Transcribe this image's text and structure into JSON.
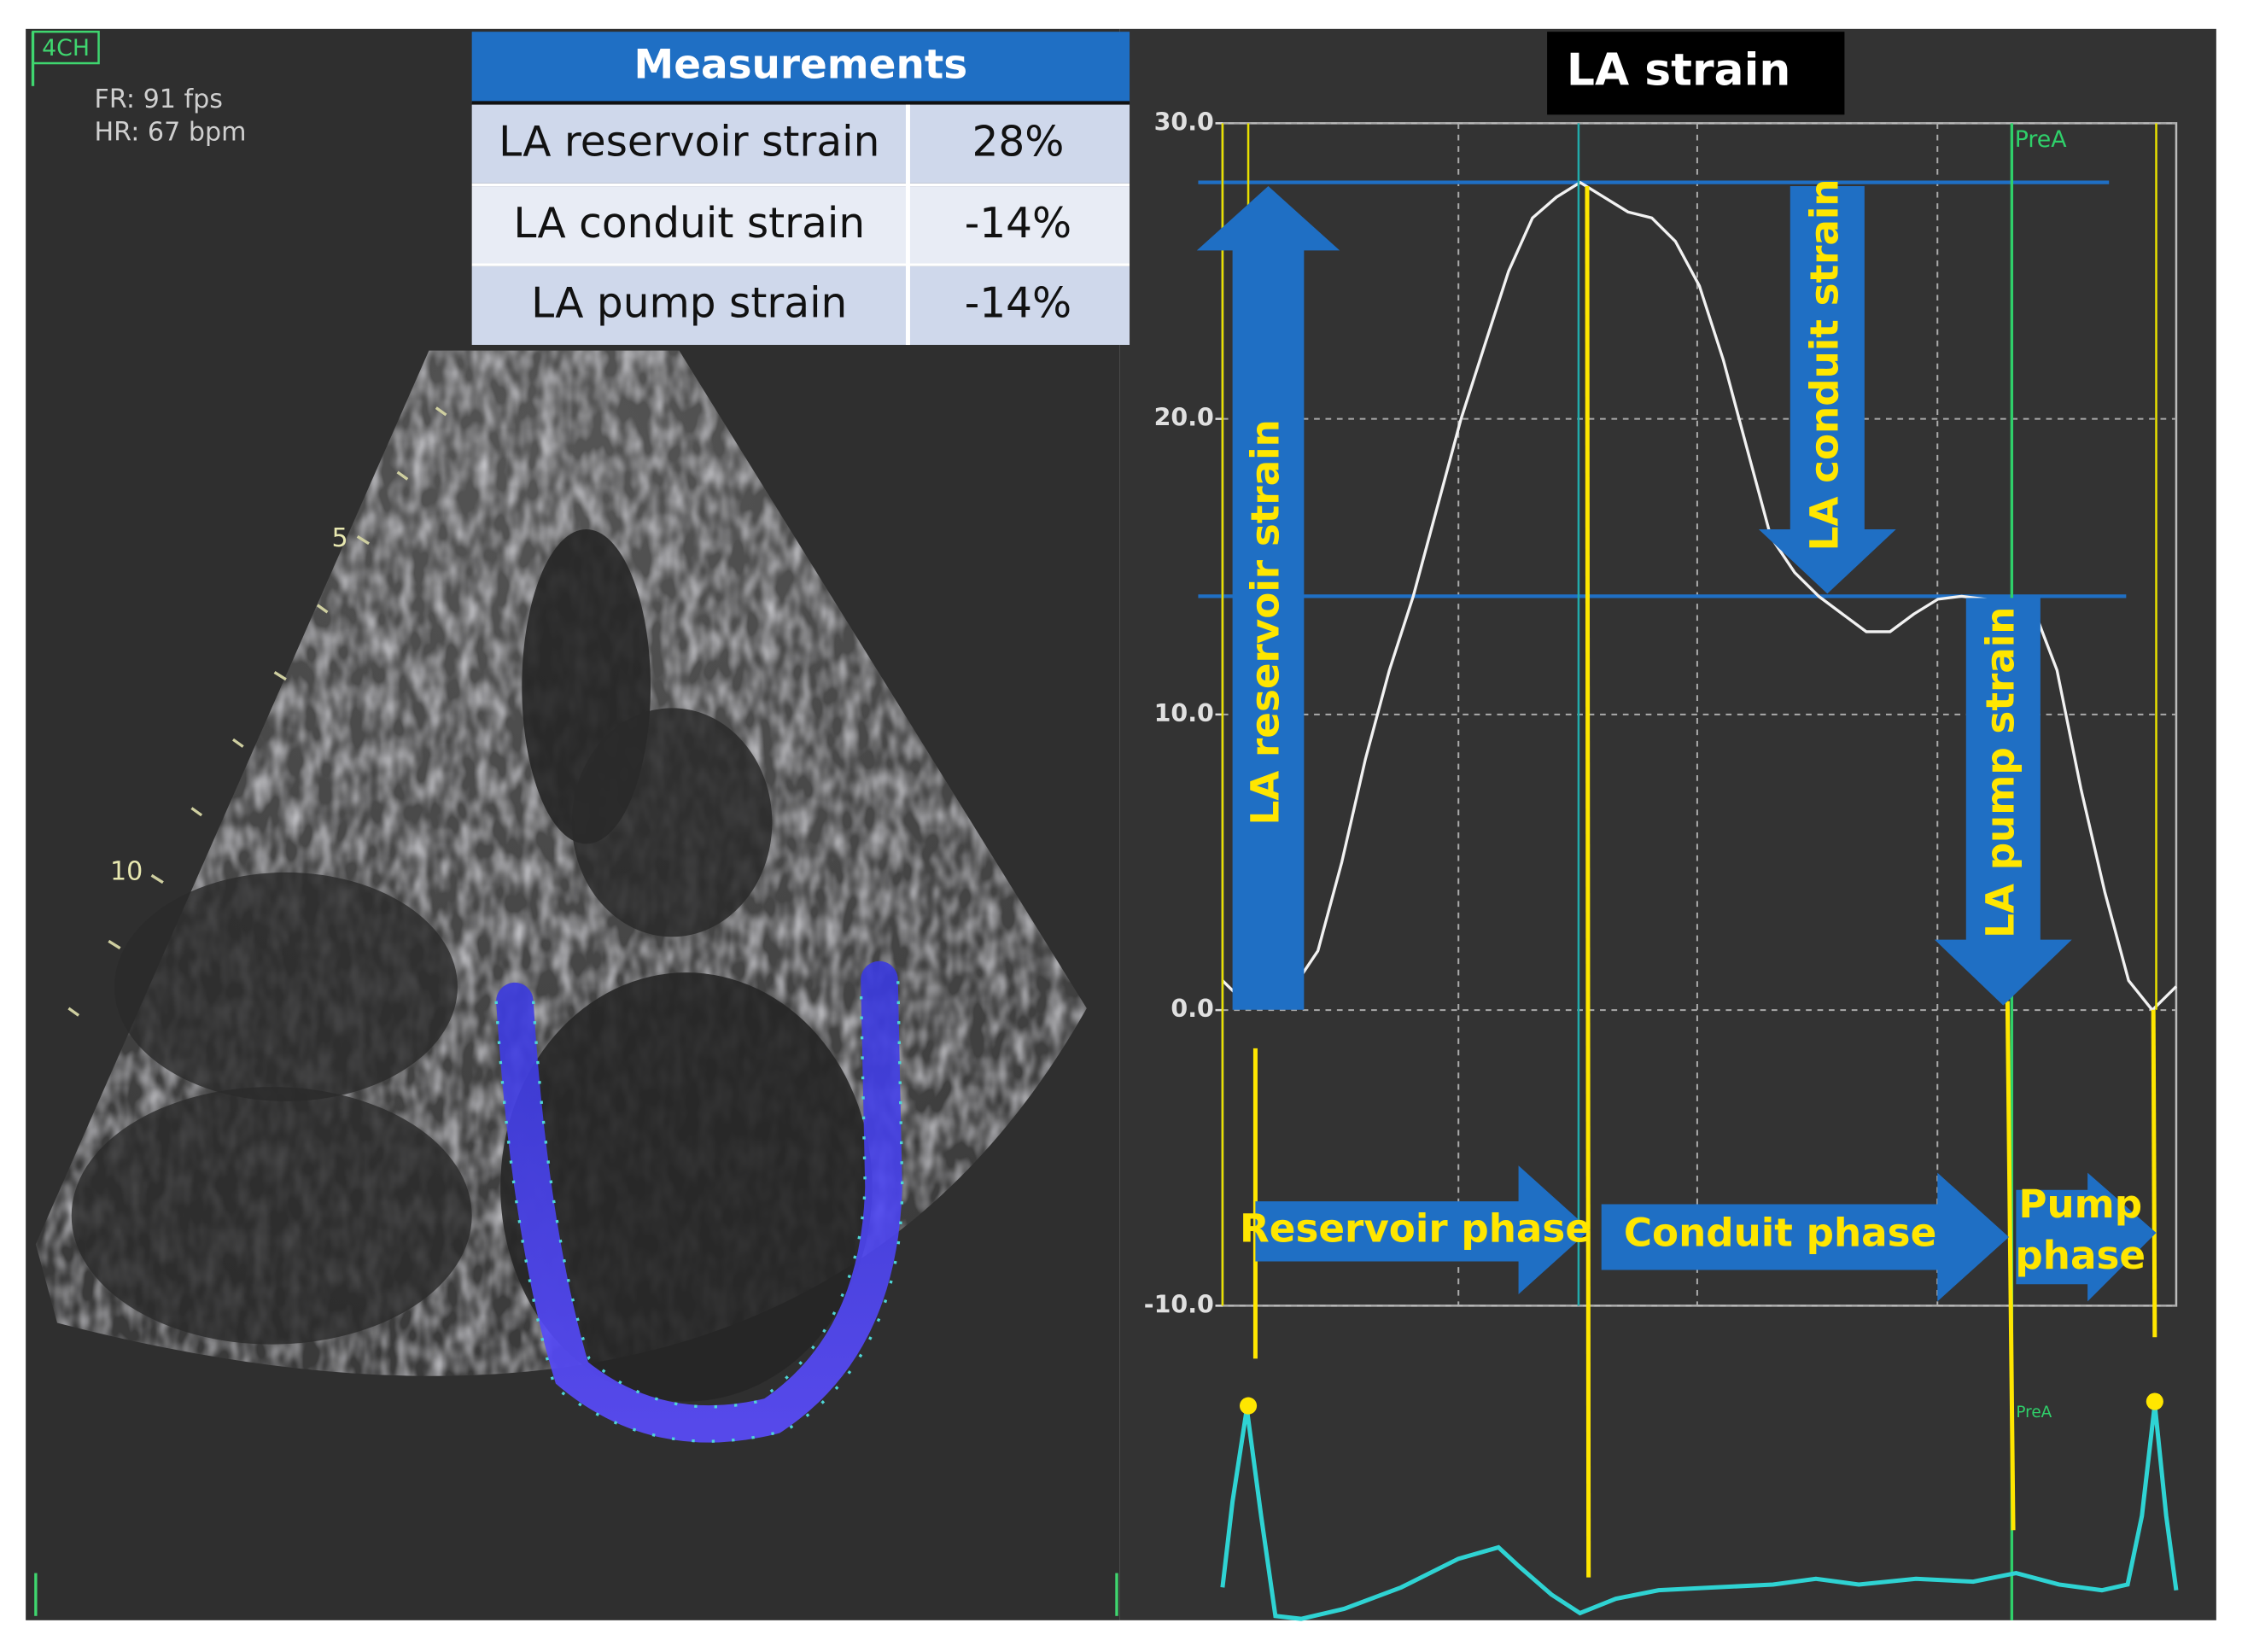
{
  "chart_data": {
    "type": "line",
    "title": "LA strain",
    "values": [
      1.0,
      0.2,
      0.3,
      0.8,
      2,
      5,
      8.5,
      11.5,
      14,
      17,
      20,
      22.5,
      25,
      26.8,
      27.5,
      28,
      27.5,
      27,
      26.8,
      26,
      24.5,
      22,
      19,
      16,
      14.8,
      14,
      13.4,
      12.8,
      12.8,
      13.4,
      13.9,
      14,
      13.9,
      13.8,
      13.6,
      11.5,
      7.5,
      4,
      1,
      0,
      0.8
    ],
    "color": "#f2f2f2",
    "ylim": [
      -10,
      30
    ],
    "yticks": [
      {
        "value": -10,
        "label": "-10.0"
      },
      {
        "value": 0,
        "label": "0.0"
      },
      {
        "value": 10,
        "label": "10.0"
      },
      {
        "value": 20,
        "label": "20.0"
      },
      {
        "value": 30,
        "label": "30.0"
      }
    ],
    "grid": true,
    "reference_lines": [
      28,
      14
    ],
    "reference_color": "#1f6fc4",
    "annotations": [
      "LA reservoir strain",
      "LA conduit strain",
      "LA pump strain",
      "Reservoir phase",
      "Conduit phase",
      "Pump phase"
    ],
    "markers": [
      "PreA",
      "PreA"
    ]
  },
  "measurements": {
    "title": "Measurements",
    "rows": [
      [
        "LA reservoir strain",
        "28%"
      ],
      [
        "LA conduit strain",
        "-14%"
      ],
      [
        "LA pump strain",
        "-14%"
      ]
    ]
  },
  "echo": {
    "view": "4CH",
    "frame_rate": "FR: 91 fps",
    "heart_rate": "HR: 67 bpm",
    "depth_marks": [
      "5",
      "10"
    ]
  }
}
